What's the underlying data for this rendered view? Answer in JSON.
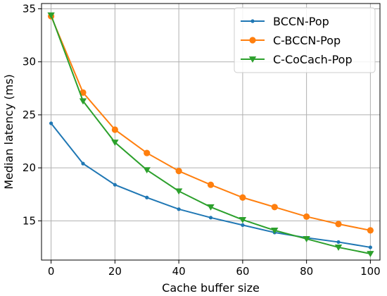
{
  "chart_data": {
    "type": "line",
    "xlabel": "Cache buffer size",
    "ylabel": "Median latency (ms)",
    "xlim": [
      -3,
      103
    ],
    "ylim": [
      11.3,
      35.5
    ],
    "xticks": [
      0,
      20,
      40,
      60,
      80,
      100
    ],
    "yticks": [
      15,
      20,
      25,
      30,
      35
    ],
    "grid": true,
    "legend_position": "top-right",
    "x": [
      0,
      10,
      20,
      30,
      40,
      50,
      60,
      70,
      80,
      90,
      100
    ],
    "series": [
      {
        "name": "BCCN-Pop",
        "color": "#1f77b4",
        "marker": "dot",
        "values": [
          24.2,
          20.4,
          18.4,
          17.2,
          16.1,
          15.3,
          14.6,
          13.9,
          13.4,
          13.0,
          12.5
        ]
      },
      {
        "name": "C-BCCN-Pop",
        "color": "#ff7f0e",
        "marker": "circle",
        "values": [
          34.3,
          27.1,
          23.6,
          21.4,
          19.7,
          18.4,
          17.2,
          16.3,
          15.4,
          14.7,
          14.1
        ]
      },
      {
        "name": "C-CoCach-Pop",
        "color": "#2ca02c",
        "marker": "triangle-down",
        "values": [
          34.4,
          26.3,
          22.4,
          19.8,
          17.8,
          16.3,
          15.1,
          14.1,
          13.3,
          12.5,
          11.9
        ]
      }
    ]
  }
}
